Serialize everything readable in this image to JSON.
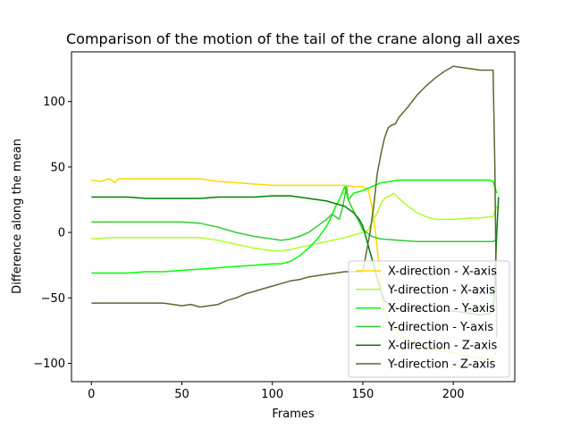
{
  "chart_data": {
    "type": "line",
    "title": "Comparison of the motion of the tail of the crane along all axes",
    "xlabel": "Frames",
    "ylabel": "Difference along the mean",
    "xlim": [
      -11,
      234
    ],
    "ylim": [
      -114,
      138
    ],
    "xticks": [
      0,
      50,
      100,
      150,
      200
    ],
    "yticks": [
      -100,
      -50,
      0,
      50,
      100
    ],
    "grid": false,
    "legend_position": "lower-right",
    "series": [
      {
        "name": "X-direction - X-axis",
        "color": "#FFD700",
        "points": [
          [
            0,
            40
          ],
          [
            5,
            39
          ],
          [
            10,
            41
          ],
          [
            13,
            38
          ],
          [
            15,
            41
          ],
          [
            25,
            41
          ],
          [
            40,
            41
          ],
          [
            55,
            41
          ],
          [
            60,
            41
          ],
          [
            70,
            39
          ],
          [
            80,
            38
          ],
          [
            90,
            37
          ],
          [
            100,
            36
          ],
          [
            110,
            36
          ],
          [
            120,
            36
          ],
          [
            130,
            36
          ],
          [
            140,
            36
          ],
          [
            145,
            35
          ],
          [
            150,
            35
          ],
          [
            153,
            33
          ],
          [
            155,
            20
          ],
          [
            157,
            0
          ],
          [
            159,
            -25
          ],
          [
            160,
            -45
          ],
          [
            162,
            -60
          ],
          [
            165,
            -70
          ],
          [
            168,
            -75
          ],
          [
            172,
            -80
          ],
          [
            178,
            -85
          ],
          [
            185,
            -88
          ],
          [
            192,
            -90
          ],
          [
            200,
            -92
          ],
          [
            210,
            -95
          ],
          [
            218,
            -97
          ],
          [
            222,
            -96
          ],
          [
            224,
            -90
          ]
        ]
      },
      {
        "name": "Y-direction - X-axis",
        "color": "#ADFF2F",
        "points": [
          [
            0,
            -5
          ],
          [
            10,
            -4
          ],
          [
            20,
            -4
          ],
          [
            30,
            -4
          ],
          [
            40,
            -4
          ],
          [
            50,
            -4
          ],
          [
            60,
            -4
          ],
          [
            70,
            -6
          ],
          [
            80,
            -9
          ],
          [
            90,
            -12
          ],
          [
            100,
            -14
          ],
          [
            105,
            -14
          ],
          [
            110,
            -13
          ],
          [
            120,
            -10
          ],
          [
            130,
            -7
          ],
          [
            140,
            -4
          ],
          [
            145,
            -2
          ],
          [
            150,
            0
          ],
          [
            153,
            2
          ],
          [
            155,
            8
          ],
          [
            158,
            15
          ],
          [
            160,
            22
          ],
          [
            162,
            26
          ],
          [
            165,
            28
          ],
          [
            167,
            30
          ],
          [
            170,
            26
          ],
          [
            175,
            20
          ],
          [
            180,
            15
          ],
          [
            185,
            12
          ],
          [
            190,
            10
          ],
          [
            200,
            10
          ],
          [
            210,
            11
          ],
          [
            215,
            11
          ],
          [
            220,
            12
          ],
          [
            222,
            12
          ],
          [
            224,
            20
          ]
        ]
      },
      {
        "name": "X-direction - Y-axis",
        "color": "#00FF00",
        "points": [
          [
            0,
            -31
          ],
          [
            10,
            -31
          ],
          [
            20,
            -31
          ],
          [
            30,
            -30
          ],
          [
            40,
            -30
          ],
          [
            50,
            -29
          ],
          [
            60,
            -28
          ],
          [
            70,
            -27
          ],
          [
            80,
            -26
          ],
          [
            90,
            -25
          ],
          [
            100,
            -24
          ],
          [
            105,
            -24
          ],
          [
            110,
            -22
          ],
          [
            115,
            -18
          ],
          [
            120,
            -12
          ],
          [
            125,
            -5
          ],
          [
            130,
            5
          ],
          [
            132,
            10
          ],
          [
            135,
            20
          ],
          [
            137,
            25
          ],
          [
            140,
            35
          ],
          [
            142,
            25
          ],
          [
            145,
            30
          ],
          [
            150,
            32
          ],
          [
            155,
            35
          ],
          [
            160,
            38
          ],
          [
            165,
            39
          ],
          [
            170,
            40
          ],
          [
            180,
            40
          ],
          [
            190,
            40
          ],
          [
            200,
            40
          ],
          [
            210,
            40
          ],
          [
            220,
            40
          ],
          [
            222,
            39
          ],
          [
            224,
            30
          ]
        ]
      },
      {
        "name": "Y-direction - Y-axis",
        "color": "#32CD32",
        "points": [
          [
            0,
            8
          ],
          [
            10,
            8
          ],
          [
            20,
            8
          ],
          [
            30,
            8
          ],
          [
            40,
            8
          ],
          [
            50,
            8
          ],
          [
            60,
            7
          ],
          [
            70,
            4
          ],
          [
            80,
            0
          ],
          [
            90,
            -3
          ],
          [
            100,
            -5
          ],
          [
            105,
            -6
          ],
          [
            110,
            -5
          ],
          [
            115,
            -3
          ],
          [
            120,
            0
          ],
          [
            125,
            5
          ],
          [
            130,
            10
          ],
          [
            133,
            14
          ],
          [
            137,
            10
          ],
          [
            139,
            20
          ],
          [
            140,
            28
          ],
          [
            141,
            35
          ],
          [
            142,
            25
          ],
          [
            145,
            16
          ],
          [
            148,
            8
          ],
          [
            150,
            2
          ],
          [
            155,
            -3
          ],
          [
            160,
            -5
          ],
          [
            170,
            -6
          ],
          [
            180,
            -7
          ],
          [
            190,
            -7
          ],
          [
            200,
            -7
          ],
          [
            210,
            -7
          ],
          [
            220,
            -7
          ],
          [
            222,
            -7
          ],
          [
            224,
            -5
          ]
        ]
      },
      {
        "name": "X-direction - Z-axis",
        "color": "#008000",
        "points": [
          [
            0,
            27
          ],
          [
            10,
            27
          ],
          [
            20,
            27
          ],
          [
            30,
            26
          ],
          [
            40,
            26
          ],
          [
            50,
            26
          ],
          [
            60,
            26
          ],
          [
            70,
            27
          ],
          [
            80,
            27
          ],
          [
            90,
            27
          ],
          [
            100,
            28
          ],
          [
            110,
            28
          ],
          [
            120,
            26
          ],
          [
            130,
            24
          ],
          [
            135,
            22
          ],
          [
            140,
            20
          ],
          [
            145,
            15
          ],
          [
            148,
            10
          ],
          [
            150,
            5
          ],
          [
            152,
            -5
          ],
          [
            154,
            -15
          ],
          [
            156,
            -25
          ],
          [
            158,
            -35
          ],
          [
            160,
            -45
          ],
          [
            162,
            -52
          ],
          [
            165,
            -56
          ],
          [
            170,
            -58
          ],
          [
            175,
            -58
          ],
          [
            180,
            -59
          ],
          [
            185,
            -60
          ],
          [
            190,
            -60
          ],
          [
            200,
            -60
          ],
          [
            210,
            -62
          ],
          [
            215,
            -63
          ],
          [
            220,
            -62
          ],
          [
            222,
            -60
          ],
          [
            223,
            -40
          ],
          [
            224,
            0
          ],
          [
            225,
            27
          ]
        ]
      },
      {
        "name": "Y-direction - Z-axis",
        "color": "#556B2F",
        "points": [
          [
            0,
            -54
          ],
          [
            10,
            -54
          ],
          [
            20,
            -54
          ],
          [
            30,
            -54
          ],
          [
            40,
            -54
          ],
          [
            45,
            -55
          ],
          [
            50,
            -56
          ],
          [
            55,
            -55
          ],
          [
            60,
            -57
          ],
          [
            65,
            -56
          ],
          [
            70,
            -55
          ],
          [
            75,
            -52
          ],
          [
            80,
            -50
          ],
          [
            85,
            -47
          ],
          [
            90,
            -45
          ],
          [
            95,
            -43
          ],
          [
            100,
            -41
          ],
          [
            105,
            -39
          ],
          [
            110,
            -37
          ],
          [
            115,
            -36
          ],
          [
            120,
            -34
          ],
          [
            125,
            -33
          ],
          [
            130,
            -32
          ],
          [
            135,
            -31
          ],
          [
            140,
            -30
          ],
          [
            145,
            -30
          ],
          [
            150,
            -30
          ],
          [
            152,
            -15
          ],
          [
            154,
            0
          ],
          [
            156,
            20
          ],
          [
            158,
            45
          ],
          [
            160,
            60
          ],
          [
            162,
            72
          ],
          [
            164,
            80
          ],
          [
            166,
            82
          ],
          [
            168,
            83
          ],
          [
            170,
            88
          ],
          [
            175,
            96
          ],
          [
            180,
            105
          ],
          [
            185,
            112
          ],
          [
            190,
            118
          ],
          [
            195,
            123
          ],
          [
            200,
            127
          ],
          [
            205,
            126
          ],
          [
            210,
            125
          ],
          [
            215,
            124
          ],
          [
            220,
            124
          ],
          [
            222,
            124
          ],
          [
            223,
            50
          ],
          [
            224,
            -80
          ]
        ]
      }
    ]
  }
}
